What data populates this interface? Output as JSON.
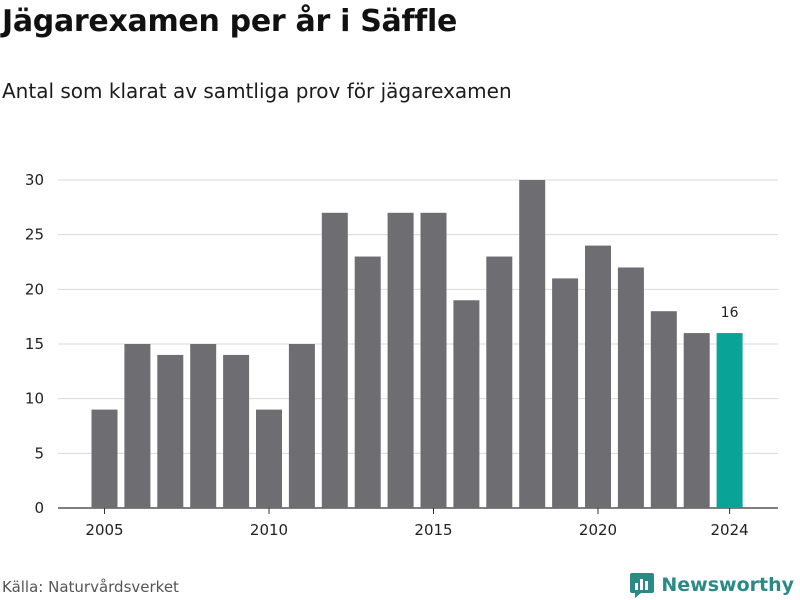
{
  "title": "Jägarexamen per år i Säffle",
  "subtitle": "Antal som klarat av samtliga prov för jägarexamen",
  "source": "Källa: Naturvårdsverket",
  "brand": {
    "name": "Newsworthy",
    "icon": "newsworthy-logo-icon"
  },
  "colors": {
    "bar": "#6e6d72",
    "highlight": "#0aa397",
    "grid": "#d9d9d9",
    "axis": "#333333"
  },
  "chart_data": {
    "type": "bar",
    "title": "Jägarexamen per år i Säffle",
    "subtitle": "Antal som klarat av samtliga prov för jägarexamen",
    "xlabel": "",
    "ylabel": "",
    "categories": [
      2005,
      2006,
      2007,
      2008,
      2009,
      2010,
      2011,
      2012,
      2013,
      2014,
      2015,
      2016,
      2017,
      2018,
      2019,
      2020,
      2021,
      2022,
      2023,
      2024
    ],
    "values": [
      9,
      15,
      14,
      15,
      14,
      9,
      15,
      27,
      23,
      27,
      27,
      19,
      23,
      30,
      21,
      24,
      22,
      18,
      16,
      16
    ],
    "highlight_category": 2024,
    "data_labels": [
      {
        "category": 2024,
        "text": "16"
      }
    ],
    "ylim": [
      0,
      30
    ],
    "yticks": [
      0,
      5,
      10,
      15,
      20,
      25,
      30
    ],
    "xticks": [
      2005,
      2010,
      2015,
      2020,
      2024
    ],
    "grid": "horizontal",
    "legend": "none"
  }
}
